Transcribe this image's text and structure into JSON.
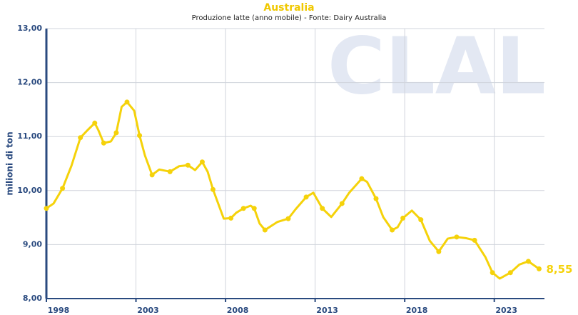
{
  "chart_data": {
    "type": "line",
    "title": "Australia",
    "subtitle": "Produzione latte (anno mobile) - Fonte: Dairy Australia",
    "y_label": "milioni di ton",
    "watermark": "CLAL",
    "xlim": [
      1998,
      2025.8
    ],
    "xticks": [
      1998,
      2003,
      2008,
      2013,
      2018,
      2023
    ],
    "ylim": [
      8,
      13
    ],
    "yticks": [
      {
        "value": 8,
        "label": "8,00"
      },
      {
        "value": 9,
        "label": "9,00"
      },
      {
        "value": 10,
        "label": "10,00"
      },
      {
        "value": 11,
        "label": "11,00"
      },
      {
        "value": 12,
        "label": "12,00"
      },
      {
        "value": 13,
        "label": "13,00"
      }
    ],
    "grid": true,
    "series": [
      {
        "name": "Australia",
        "color": "#f5d20a",
        "x": [
          1998.0,
          1998.4,
          1998.9,
          1999.4,
          1999.9,
          2000.3,
          2000.7,
          2000.9,
          2001.2,
          2001.6,
          2001.9,
          2002.2,
          2002.5,
          2002.9,
          2003.2,
          2003.5,
          2003.9,
          2004.3,
          2004.9,
          2005.4,
          2005.9,
          2006.3,
          2006.7,
          2007.0,
          2007.3,
          2007.9,
          2008.3,
          2008.6,
          2009.0,
          2009.4,
          2009.6,
          2009.9,
          2010.2,
          2010.9,
          2011.5,
          2011.9,
          2012.5,
          2012.9,
          2013.4,
          2013.9,
          2014.5,
          2014.9,
          2015.6,
          2015.9,
          2016.4,
          2016.8,
          2017.3,
          2017.6,
          2017.9,
          2018.4,
          2018.9,
          2019.4,
          2019.9,
          2020.4,
          2020.9,
          2021.4,
          2021.9,
          2022.5,
          2022.9,
          2023.3,
          2023.9,
          2024.4,
          2024.9,
          2025.5
        ],
        "values": [
          9.67,
          9.76,
          10.04,
          10.46,
          10.98,
          11.12,
          11.25,
          11.12,
          10.88,
          10.91,
          11.07,
          11.55,
          11.64,
          11.48,
          11.02,
          10.65,
          10.29,
          10.39,
          10.35,
          10.45,
          10.47,
          10.38,
          10.53,
          10.35,
          10.02,
          9.48,
          9.49,
          9.59,
          9.67,
          9.72,
          9.67,
          9.39,
          9.27,
          9.42,
          9.48,
          9.65,
          9.88,
          9.96,
          9.67,
          9.51,
          9.76,
          9.96,
          10.22,
          10.16,
          9.85,
          9.51,
          9.27,
          9.32,
          9.49,
          9.63,
          9.46,
          9.07,
          8.87,
          9.11,
          9.14,
          9.12,
          9.08,
          8.77,
          8.48,
          8.37,
          8.48,
          8.63,
          8.69,
          8.55
        ],
        "value_labels": [
          null,
          null,
          null,
          null,
          null,
          null,
          null,
          null,
          null,
          null,
          null,
          null,
          null,
          null,
          null,
          null,
          null,
          null,
          null,
          null,
          null,
          null,
          null,
          null,
          null,
          null,
          null,
          null,
          null,
          null,
          null,
          null,
          null,
          null,
          null,
          null,
          null,
          null,
          null,
          null,
          null,
          null,
          null,
          null,
          null,
          null,
          null,
          null,
          null,
          null,
          null,
          null,
          null,
          null,
          null,
          null,
          null,
          null,
          null,
          null,
          null,
          null,
          null,
          "8,55"
        ]
      }
    ]
  }
}
